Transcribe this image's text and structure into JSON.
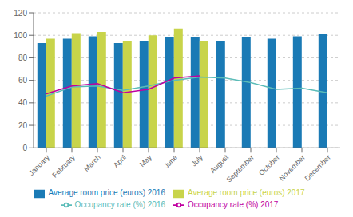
{
  "chart_data": {
    "type": "bar",
    "categories": [
      "January",
      "February",
      "March",
      "April",
      "May",
      "June",
      "July",
      "August",
      "September",
      "October",
      "November",
      "December"
    ],
    "series": [
      {
        "name": "Average room price (euros) 2016",
        "type": "bar",
        "color": "#1a7ab5",
        "values": [
          93,
          97,
          99,
          93,
          95,
          98,
          98,
          95,
          98,
          97,
          99,
          101
        ]
      },
      {
        "name": "Average room price (euros) 2017",
        "type": "bar",
        "color": "#c8d44a",
        "values": [
          97,
          102,
          103,
          95,
          100,
          106,
          95,
          null,
          null,
          null,
          null,
          null
        ]
      },
      {
        "name": "Occupancy rate (%) 2016",
        "type": "line",
        "color": "#5bbcb8",
        "values": [
          46,
          54,
          55,
          51,
          55,
          60,
          63,
          62,
          58,
          52,
          53,
          49
        ]
      },
      {
        "name": "Occupancy rate (%) 2017",
        "type": "line",
        "color": "#c000a0",
        "values": [
          48,
          55,
          57,
          49,
          52,
          62,
          64,
          null,
          null,
          null,
          null,
          null
        ]
      }
    ],
    "ylim": [
      0,
      120
    ],
    "yticks": [
      0,
      20,
      40,
      60,
      80,
      100,
      120
    ],
    "grid": true,
    "legend": "bottom"
  }
}
